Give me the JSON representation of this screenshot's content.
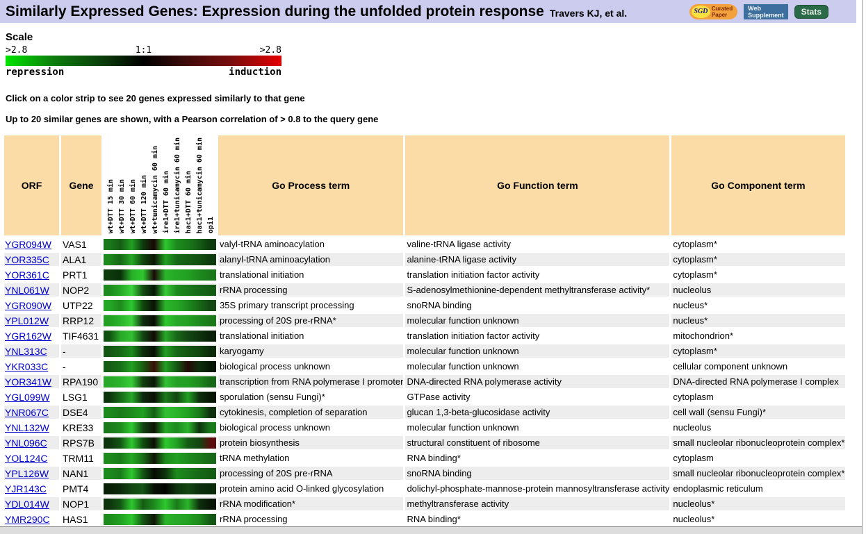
{
  "header": {
    "title": "Similarly Expressed Genes: Expression during the unfolded protein response",
    "authors": "Travers KJ, et al.",
    "badges": {
      "sgd_brand": "SGD",
      "sgd_line1": "Curated",
      "sgd_line2": "Paper",
      "web_line1": "Web",
      "web_line2": "Supplement",
      "stats": "Stats"
    }
  },
  "scale": {
    "heading": "Scale",
    "left_value": ">2.8",
    "center_value": "1:1",
    "right_value": ">2.8",
    "left_label": "repression",
    "right_label": "induction",
    "gradient": [
      {
        "color": "#00e400",
        "pos": 0
      },
      {
        "color": "#0d7a0d",
        "pos": 18
      },
      {
        "color": "#0a3a0a",
        "pos": 36
      },
      {
        "color": "#000000",
        "pos": 50
      },
      {
        "color": "#3a0a0a",
        "pos": 64
      },
      {
        "color": "#7a0d0d",
        "pos": 82
      },
      {
        "color": "#e40000",
        "pos": 100
      }
    ]
  },
  "instructions": {
    "line1": "Click on a color strip to see 20 genes expressed similarly to that gene",
    "line2": "Up to 20 similar genes are shown, with a Pearson correlation of > 0.8 to the query gene"
  },
  "table": {
    "headers": {
      "orf": "ORF",
      "gene": "Gene",
      "process": "Go Process term",
      "function": "Go Function term",
      "component": "Go Component term"
    },
    "experiments": [
      "wt+DTT 15 min",
      "wt+DTT 30 min",
      "wt+DTT 60 min",
      "wt+DTT 120 min",
      "wt+tunicamycin 60 min",
      "ire1+DTT 60 min",
      "ire1+tunicamycin 60 min",
      "hac1+DTT 60 min",
      "hac1+tunicamycin 60 min",
      "opi1"
    ],
    "rows": [
      {
        "orf": "YGR094W",
        "gene": "VAS1",
        "process": "valyl-tRNA aminoacylation",
        "function": "valine-tRNA ligase activity",
        "component": "cytoplasm*",
        "strip": [
          "#1a7a1a",
          "#145c14",
          "#22a022",
          "#0d3a0d",
          "#1a0505",
          "#2ec82e",
          "#1d8a1d",
          "#1a7a1a",
          "#145c14",
          "#0d3a0d"
        ]
      },
      {
        "orf": "YOR335C",
        "gene": "ALA1",
        "process": "alanyl-tRNA aminoacylation",
        "function": "alanine-tRNA ligase activity",
        "component": "cytoplasm*",
        "strip": [
          "#1d8a1d",
          "#176817",
          "#25a825",
          "#10460d",
          "#0d1505",
          "#22a022",
          "#176817",
          "#145c14",
          "#124f12",
          "#0d3a0d"
        ]
      },
      {
        "orf": "YOR361C",
        "gene": "PRT1",
        "process": "translational initiation",
        "function": "translation initiation factor activity",
        "component": "cytoplasm*",
        "strip": [
          "#0d3a0d",
          "#0a2f0a",
          "#28b028",
          "#2ec82e",
          "#1a0808",
          "#2bb42b",
          "#25a825",
          "#22a022",
          "#1d8a1d",
          "#1a7a1a"
        ]
      },
      {
        "orf": "YNL061W",
        "gene": "NOP2",
        "process": "rRNA processing",
        "function": "S-adenosylmethionine-dependent methyltransferase activity*",
        "component": "nucleolus",
        "strip": [
          "#1d8a1d",
          "#25a825",
          "#3cd43c",
          "#124f12",
          "#061505",
          "#38cc38",
          "#1d8a1d",
          "#1a7a1a",
          "#176817",
          "#145c14"
        ]
      },
      {
        "orf": "YGR090W",
        "gene": "UTP22",
        "process": "35S primary transcript processing",
        "function": "snoRNA binding",
        "component": "nucleus*",
        "strip": [
          "#25a825",
          "#1d8a1d",
          "#2ec82e",
          "#10460d",
          "#0a1205",
          "#2bb42b",
          "#25a825",
          "#1d8a1d",
          "#176817",
          "#124612"
        ]
      },
      {
        "orf": "YPL012W",
        "gene": "RRP12",
        "process": "processing of 20S pre-rRNA*",
        "function": "molecular function unknown",
        "component": "nucleus*",
        "strip": [
          "#22a022",
          "#2bb42b",
          "#3cd43c",
          "#0d2f0d",
          "#0a0a05",
          "#2ec82e",
          "#28a828",
          "#22a022",
          "#1d8a1d",
          "#1a7a1a"
        ]
      },
      {
        "orf": "YGR162W",
        "gene": "TIF4631",
        "process": "translational initiation",
        "function": "translation initiation factor activity",
        "component": "mitochondrion*",
        "strip": [
          "#0f4f0f",
          "#28a828",
          "#32c032",
          "#124612",
          "#120805",
          "#28a828",
          "#176817",
          "#124612",
          "#0d330d",
          "#081f08"
        ]
      },
      {
        "orf": "YNL313C",
        "gene": "-",
        "process": "karyogamy",
        "function": "molecular function unknown",
        "component": "cytoplasm*",
        "strip": [
          "#135613",
          "#176817",
          "#1d8a1d",
          "#0d2f0d",
          "#070f05",
          "#22a022",
          "#176817",
          "#135613",
          "#0f460f",
          "#0a2a0a"
        ]
      },
      {
        "orf": "YKR033C",
        "gene": "-",
        "process": "biological process unknown",
        "function": "molecular function unknown",
        "component": "cellular component unknown",
        "strip": [
          "#145c14",
          "#186e18",
          "#22a022",
          "#185c0e",
          "#3a0d08",
          "#22a022",
          "#135613",
          "#240806",
          "#0d2f0d",
          "#051505"
        ]
      },
      {
        "orf": "YOR341W",
        "gene": "RPA190",
        "process": "transcription from RNA polymerase I promoter",
        "function": "DNA-directed RNA polymerase activity",
        "component": "DNA-directed RNA polymerase I complex",
        "strip": [
          "#28a828",
          "#2bb42b",
          "#38cc38",
          "#10400d",
          "#0c1408",
          "#32c032",
          "#25a025",
          "#22a022",
          "#1d8a1d",
          "#176817"
        ]
      },
      {
        "orf": "YGL099W",
        "gene": "LSG1",
        "process": "sporulation (sensu Fungi)*",
        "function": "GTPase activity",
        "component": "cytoplasm",
        "strip": [
          "#0d330d",
          "#176817",
          "#28a828",
          "#0d2a0d",
          "#0a0f05",
          "#1a7a1a",
          "#124612",
          "#22a022",
          "#0d2f0d",
          "#071505"
        ]
      },
      {
        "orf": "YNR067C",
        "gene": "DSE4",
        "process": "cytokinesis, completion of separation",
        "function": "glucan 1,3-beta-glucosidase activity",
        "component": "cell wall (sensu Fungi)*",
        "strip": [
          "#1d8a1d",
          "#1a7a1a",
          "#1d8a1d",
          "#22a022",
          "#145c14",
          "#32c032",
          "#2bb42b",
          "#22a022",
          "#1a7a1a",
          "#0d2f0d"
        ]
      },
      {
        "orf": "YNL132W",
        "gene": "KRE33",
        "process": "biological process unknown",
        "function": "molecular function unknown",
        "component": "nucleolus",
        "strip": [
          "#1a7a1a",
          "#1d8a1d",
          "#2ec82e",
          "#124612",
          "#0d1505",
          "#25a825",
          "#1d8a1d",
          "#2bb42b",
          "#0d330d",
          "#1a7a1a"
        ]
      },
      {
        "orf": "YNL096C",
        "gene": "RPS7B",
        "process": "protein biosynthesis",
        "function": "structural constituent of ribosome",
        "component": "small nucleolar ribonucleoprotein complex*",
        "strip": [
          "#0d330d",
          "#135613",
          "#2ec82e",
          "#0f4f0f",
          "#0d0d05",
          "#2ec82e",
          "#22a022",
          "#145c14",
          "#124612",
          "#5a0d0d"
        ]
      },
      {
        "orf": "YOL124C",
        "gene": "TRM11",
        "process": "tRNA methylation",
        "function": "RNA binding*",
        "component": "cytoplasm",
        "strip": [
          "#1d8a1d",
          "#1a7a1a",
          "#25a825",
          "#186e18",
          "#0d1505",
          "#1d8a1d",
          "#22a022",
          "#1d8a1d",
          "#1a7a1a",
          "#176817"
        ]
      },
      {
        "orf": "YPL126W",
        "gene": "NAN1",
        "process": "processing of 20S pre-rRNA",
        "function": "snoRNA binding",
        "component": "small nucleolar ribonucleoprotein complex*",
        "strip": [
          "#1d8a1d",
          "#1a7a1a",
          "#2ec82e",
          "#135613",
          "#050a02",
          "#0d330d",
          "#1d8a1d",
          "#1a7a1a",
          "#176817",
          "#145c14"
        ]
      },
      {
        "orf": "YJR143C",
        "gene": "PMT4",
        "process": "protein amino acid O-linked glycosylation",
        "function": "dolichyl-phosphate-mannose-protein mannosyltransferase activity",
        "component": "endoplasmic reticulum",
        "strip": [
          "#081f08",
          "#0a2a0a",
          "#124612",
          "#135613",
          "#060f05",
          "#020502",
          "#0d330d",
          "#124612",
          "#0d2f0d",
          "#0a2a0a"
        ]
      },
      {
        "orf": "YDL014W",
        "gene": "NOP1",
        "process": "rRNA modification*",
        "function": "methyltransferase activity",
        "component": "nucleolus*",
        "strip": [
          "#0d330d",
          "#135613",
          "#2ec82e",
          "#145c14",
          "#1d8a1d",
          "#2ec82e",
          "#1a7a1a",
          "#2bb42b",
          "#0d2f0d",
          "#071505"
        ]
      },
      {
        "orf": "YMR290C",
        "gene": "HAS1",
        "process": "rRNA processing",
        "function": "RNA binding*",
        "component": "nucleolus*",
        "strip": [
          "#1d8a1d",
          "#22a022",
          "#2ec82e",
          "#135613",
          "#0d1505",
          "#2bb42b",
          "#28a828",
          "#22a022",
          "#1d8a1d",
          "#135613"
        ]
      }
    ]
  },
  "colors": {
    "header_bg": "#ccccee",
    "cell_bg": "#fbdca6",
    "row_alt_bg": "#ededed",
    "link": "#0000cc"
  }
}
